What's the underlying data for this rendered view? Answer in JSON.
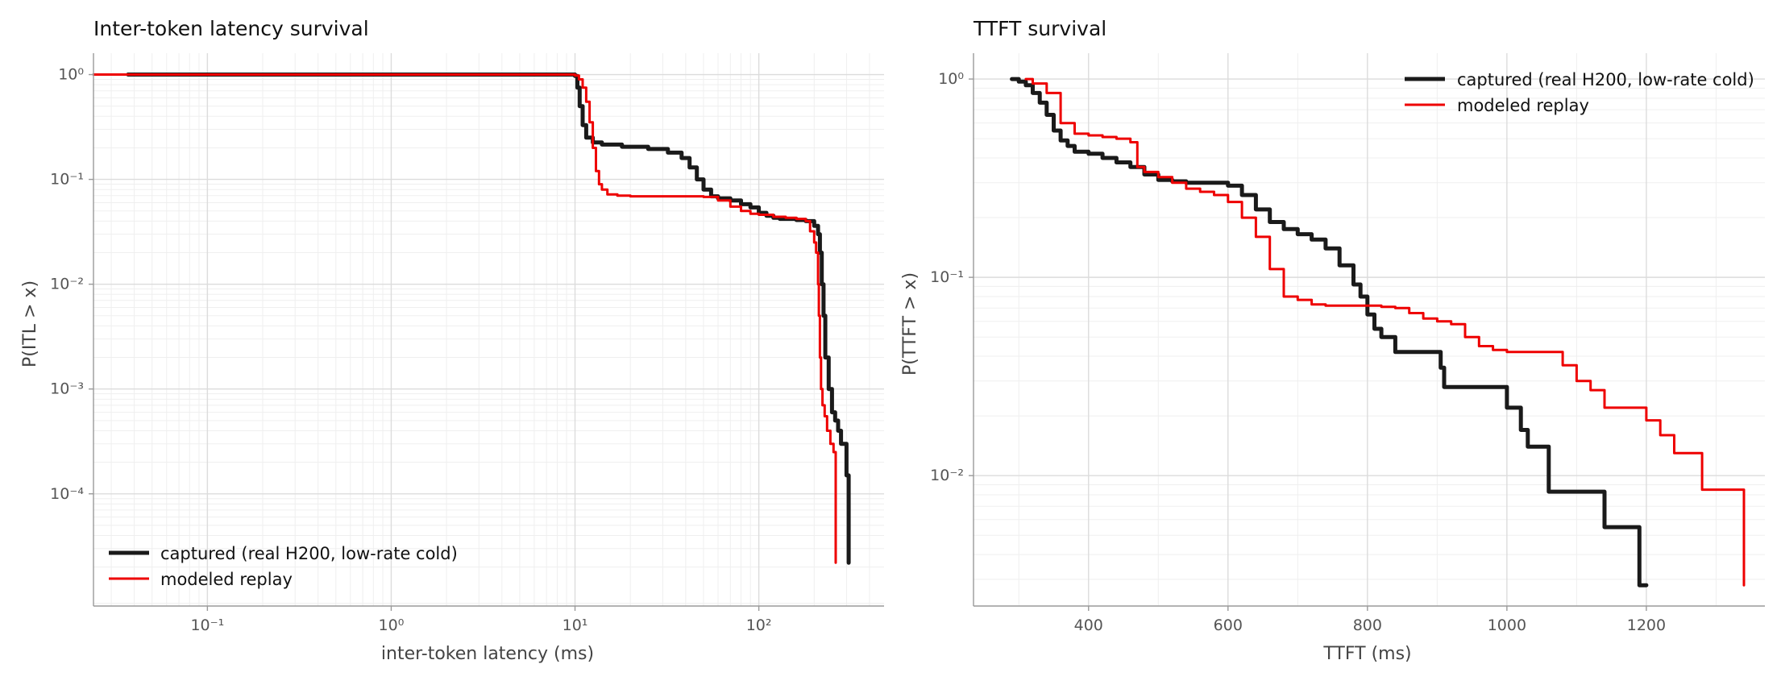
{
  "chart_data": [
    {
      "type": "line",
      "title": "Inter-token latency survival",
      "xlabel": "inter-token latency (ms)",
      "ylabel": "P(ITL > x)",
      "xscale": "log",
      "yscale": "log",
      "xlim": [
        0.024,
        480
      ],
      "ylim": [
        8.5e-06,
        1.6
      ],
      "xticks": [
        0.1,
        1,
        10,
        100
      ],
      "xtick_labels": [
        "10⁻¹",
        "10⁰",
        "10¹",
        "10²"
      ],
      "yticks": [
        1,
        0.1,
        0.01,
        0.001,
        0.0001
      ],
      "ytick_labels": [
        "10⁰",
        "10⁻¹",
        "10⁻²",
        "10⁻³",
        "10⁻⁴"
      ],
      "grid": true,
      "legend": "lower-left",
      "series": [
        {
          "name": "captured (real H200, low-rate cold)",
          "color": "#1a1a1a",
          "x": [
            0.037,
            1,
            9.5,
            10,
            10.3,
            10.6,
            11,
            11.5,
            12.5,
            14,
            18,
            25,
            32,
            38,
            42,
            46,
            50,
            55,
            60,
            70,
            80,
            90,
            100,
            110,
            120,
            130,
            140,
            160,
            180,
            200,
            210,
            215,
            220,
            225,
            230,
            240,
            250,
            260,
            270,
            280,
            290,
            300,
            308,
            308
          ],
          "y": [
            1,
            1,
            1,
            0.97,
            0.75,
            0.5,
            0.33,
            0.25,
            0.225,
            0.215,
            0.205,
            0.195,
            0.18,
            0.16,
            0.13,
            0.1,
            0.08,
            0.069,
            0.066,
            0.063,
            0.058,
            0.054,
            0.048,
            0.045,
            0.043,
            0.042,
            0.042,
            0.041,
            0.04,
            0.036,
            0.03,
            0.02,
            0.01,
            0.005,
            0.002,
            0.001,
            0.0006,
            0.0005,
            0.0004,
            0.0003,
            0.0003,
            0.00015,
            0.00015,
            2.2e-05
          ]
        },
        {
          "name": "modeled replay",
          "color": "#ee0000",
          "x": [
            0.024,
            1,
            9.5,
            10,
            10.5,
            11,
            11.5,
            12,
            12.5,
            13,
            13.5,
            14,
            15,
            17,
            20,
            25,
            30,
            40,
            50,
            60,
            70,
            80,
            90,
            100,
            120,
            140,
            160,
            180,
            190,
            200,
            205,
            210,
            212,
            215,
            218,
            222,
            228,
            235,
            245,
            255,
            262,
            262
          ],
          "y": [
            1,
            1,
            1,
            0.98,
            0.9,
            0.75,
            0.55,
            0.35,
            0.2,
            0.12,
            0.09,
            0.08,
            0.072,
            0.07,
            0.069,
            0.069,
            0.069,
            0.069,
            0.068,
            0.063,
            0.055,
            0.05,
            0.047,
            0.046,
            0.044,
            0.043,
            0.042,
            0.04,
            0.032,
            0.025,
            0.02,
            0.01,
            0.005,
            0.002,
            0.001,
            0.0007,
            0.00055,
            0.0004,
            0.0003,
            0.00025,
            0.0002,
            2.2e-05
          ]
        }
      ]
    },
    {
      "type": "line",
      "title": "TTFT survival",
      "xlabel": "TTFT (ms)",
      "ylabel": "P(TTFT > x)",
      "xscale": "linear",
      "yscale": "log",
      "xlim": [
        235,
        1370
      ],
      "ylim": [
        0.0022,
        1.35
      ],
      "xticks": [
        400,
        600,
        800,
        1000,
        1200
      ],
      "xtick_labels": [
        "400",
        "600",
        "800",
        "1000",
        "1200"
      ],
      "yticks": [
        1,
        0.1,
        0.01
      ],
      "ytick_labels": [
        "10⁰",
        "10⁻¹",
        "10⁻²"
      ],
      "grid": true,
      "legend": "top-right",
      "series": [
        {
          "name": "captured (real H200, low-rate cold)",
          "color": "#1a1a1a",
          "x": [
            290,
            300,
            310,
            320,
            330,
            340,
            350,
            360,
            370,
            380,
            400,
            420,
            440,
            460,
            480,
            500,
            520,
            540,
            560,
            580,
            600,
            620,
            640,
            660,
            680,
            700,
            720,
            740,
            760,
            780,
            790,
            800,
            810,
            820,
            840,
            860,
            880,
            900,
            905,
            910,
            920,
            940,
            960,
            980,
            990,
            1000,
            1010,
            1020,
            1030,
            1040,
            1060,
            1080,
            1100,
            1120,
            1140,
            1160,
            1180,
            1190,
            1200
          ],
          "y": [
            1,
            0.97,
            0.93,
            0.85,
            0.76,
            0.66,
            0.55,
            0.49,
            0.46,
            0.43,
            0.42,
            0.4,
            0.38,
            0.36,
            0.33,
            0.31,
            0.305,
            0.3,
            0.3,
            0.3,
            0.29,
            0.26,
            0.22,
            0.19,
            0.175,
            0.165,
            0.155,
            0.14,
            0.115,
            0.092,
            0.08,
            0.065,
            0.055,
            0.05,
            0.042,
            0.042,
            0.042,
            0.042,
            0.035,
            0.028,
            0.028,
            0.028,
            0.028,
            0.028,
            0.028,
            0.022,
            0.022,
            0.017,
            0.014,
            0.014,
            0.0083,
            0.0083,
            0.0083,
            0.0083,
            0.0055,
            0.0055,
            0.0055,
            0.0028,
            0.0028
          ]
        },
        {
          "name": "modeled replay",
          "color": "#ee0000",
          "x": [
            310,
            320,
            340,
            360,
            380,
            400,
            420,
            440,
            460,
            470,
            480,
            500,
            520,
            540,
            560,
            580,
            600,
            620,
            640,
            660,
            680,
            700,
            720,
            740,
            760,
            780,
            800,
            820,
            840,
            860,
            880,
            900,
            920,
            940,
            960,
            980,
            1000,
            1020,
            1040,
            1060,
            1080,
            1100,
            1120,
            1140,
            1160,
            1180,
            1200,
            1220,
            1240,
            1260,
            1280,
            1300,
            1340
          ],
          "y": [
            1,
            0.95,
            0.85,
            0.6,
            0.53,
            0.52,
            0.51,
            0.5,
            0.48,
            0.36,
            0.34,
            0.32,
            0.3,
            0.28,
            0.27,
            0.26,
            0.24,
            0.2,
            0.16,
            0.11,
            0.08,
            0.077,
            0.073,
            0.072,
            0.072,
            0.072,
            0.072,
            0.071,
            0.07,
            0.066,
            0.062,
            0.06,
            0.058,
            0.05,
            0.045,
            0.043,
            0.042,
            0.042,
            0.042,
            0.042,
            0.036,
            0.03,
            0.027,
            0.022,
            0.022,
            0.022,
            0.019,
            0.016,
            0.013,
            0.013,
            0.0085,
            0.0085,
            0.0028
          ]
        }
      ]
    }
  ]
}
